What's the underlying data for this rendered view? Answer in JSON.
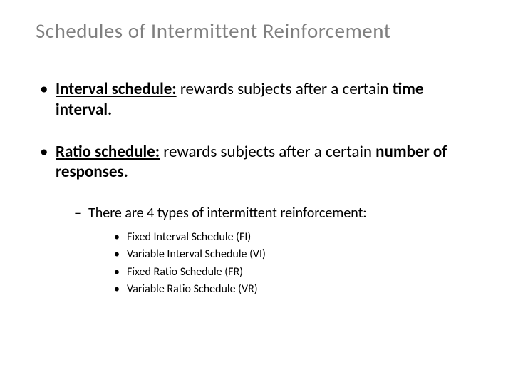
{
  "slide": {
    "title": "Schedules of  Intermittent Reinforcement",
    "bullets": [
      {
        "term": "Interval schedule:",
        "rest": " rewards subjects after a certain ",
        "bold_trail": "time interval."
      },
      {
        "term": "Ratio schedule:",
        "rest": " rewards subjects after a certain ",
        "bold_trail": "number of responses."
      }
    ],
    "sub_intro": "There are 4 types of intermittent reinforcement:",
    "types": [
      "Fixed Interval Schedule (FI)",
      "Variable Interval Schedule (VI)",
      "Fixed Ratio Schedule (FR)",
      "Variable Ratio Schedule (VR)"
    ]
  },
  "style": {
    "title_color": "#7f7f7f",
    "text_color": "#000000",
    "background_color": "#ffffff",
    "title_fontsize": 29,
    "main_fontsize": 23,
    "sub_fontsize": 20,
    "subsub_fontsize": 16,
    "font_family": "Calibri, Arial, sans-serif"
  }
}
